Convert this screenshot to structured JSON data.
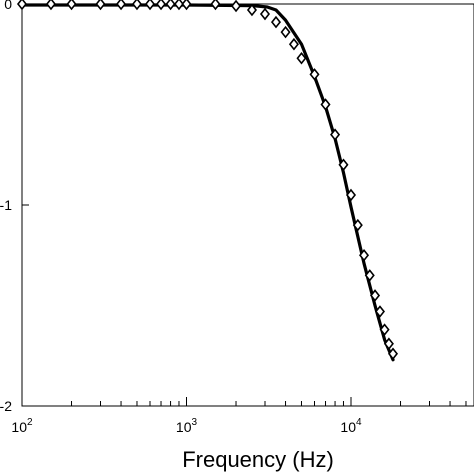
{
  "chart_data": {
    "type": "line",
    "xlabel": "Frequency (Hz)",
    "ylabel": "",
    "x_scale": "log",
    "y_scale": "linear",
    "xlim": [
      100,
      60000
    ],
    "ylim": [
      -2,
      0
    ],
    "x_ticks": [
      {
        "value": 100,
        "base": "10",
        "exp": "2"
      },
      {
        "value": 1000,
        "base": "10",
        "exp": "3"
      },
      {
        "value": 10000,
        "base": "10",
        "exp": "4"
      }
    ],
    "y_ticks": [
      {
        "value": 0,
        "label": "0"
      },
      {
        "value": -1,
        "label": "-1"
      },
      {
        "value": -2,
        "label": "-2"
      }
    ],
    "grid": false,
    "series": [
      {
        "style": "line",
        "color": "#000000",
        "x": [
          100,
          1000,
          2500,
          3100,
          3500,
          4000,
          5000,
          6000,
          7000,
          8000,
          9000,
          10000,
          12000,
          14000,
          16000,
          18000
        ],
        "y": [
          -0.005,
          -0.005,
          -0.008,
          -0.015,
          -0.03,
          -0.08,
          -0.2,
          -0.36,
          -0.51,
          -0.67,
          -0.84,
          -1.01,
          -1.29,
          -1.5,
          -1.67,
          -1.77
        ]
      },
      {
        "style": "markers",
        "marker": "diamond",
        "color": "#000000",
        "x": [
          100,
          150,
          200,
          300,
          400,
          500,
          600,
          700,
          800,
          900,
          1000,
          1500,
          2000,
          2500,
          3000,
          3500,
          4000,
          4500,
          5000,
          6000,
          7000,
          8000,
          9000,
          10000,
          11000,
          12000,
          13000,
          14000,
          15000,
          16000,
          17000,
          18000
        ],
        "y": [
          0,
          0,
          0,
          0,
          0,
          0,
          0,
          0,
          0,
          0,
          0,
          0,
          -0.01,
          -0.03,
          -0.05,
          -0.09,
          -0.14,
          -0.2,
          -0.27,
          -0.35,
          -0.5,
          -0.65,
          -0.8,
          -0.95,
          -1.1,
          -1.25,
          -1.35,
          -1.45,
          -1.53,
          -1.62,
          -1.69,
          -1.74
        ]
      }
    ]
  }
}
